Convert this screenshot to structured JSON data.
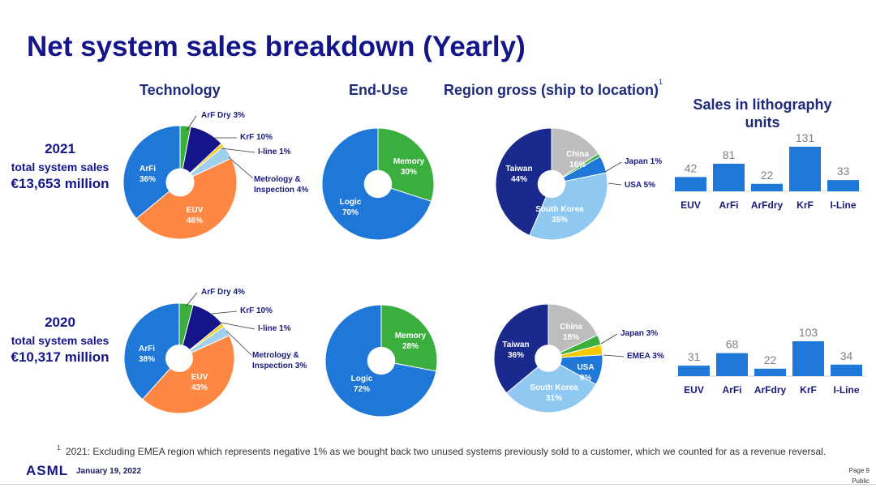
{
  "title": "Net system sales breakdown (Yearly)",
  "headings": {
    "technology": "Technology",
    "end_use": "End-Use",
    "region": "Region gross (ship to location)",
    "region_sup": "1",
    "litho_line1": "Sales in lithography",
    "litho_line2": "units"
  },
  "years": [
    {
      "year": "2021",
      "subtitle": "total system sales",
      "amount": "€13,653 million"
    },
    {
      "year": "2020",
      "subtitle": "total system sales",
      "amount": "€10,317 million"
    }
  ],
  "footnote": {
    "marker": "1",
    "text": "2021: Excluding EMEA region which represents negative 1% as we bought back two unused systems previously sold to a customer, which we counted for as a revenue reversal."
  },
  "footer": {
    "logo": "ASML",
    "date": "January 19, 2022",
    "page": "Page 9",
    "classification": "Public"
  },
  "colors": {
    "navy": "#15158a",
    "blue": "#1f78d8",
    "green": "#3aaf3e",
    "orange": "#ff8744",
    "lightblue": "#9fd0ee",
    "yellow": "#f5c800",
    "gray": "#bdbdbd",
    "darknavy": "#1a2a8c",
    "skyblue": "#8fc9f2"
  },
  "chart_data": [
    {
      "type": "pie",
      "chart": "technology",
      "year": "2021",
      "slices": [
        {
          "label": "ArF Dry",
          "value": 3,
          "pct": "3%",
          "color": "#3aaf3e"
        },
        {
          "label": "KrF",
          "value": 10,
          "pct": "10%",
          "color": "#15158a"
        },
        {
          "label": "I-line",
          "value": 1,
          "pct": "1%",
          "color": "#f5c800"
        },
        {
          "label": "Metrology & Inspection",
          "value": 4,
          "pct": "4%",
          "color": "#9fd0ee"
        },
        {
          "label": "EUV",
          "value": 46,
          "pct": "46%",
          "color": "#ff8744"
        },
        {
          "label": "ArFi",
          "value": 36,
          "pct": "36%",
          "color": "#1f78d8"
        }
      ]
    },
    {
      "type": "pie",
      "chart": "end-use",
      "year": "2021",
      "slices": [
        {
          "label": "Memory",
          "value": 30,
          "pct": "30%",
          "color": "#3aaf3e"
        },
        {
          "label": "Logic",
          "value": 70,
          "pct": "70%",
          "color": "#1f78d8"
        }
      ]
    },
    {
      "type": "pie",
      "chart": "region",
      "year": "2021",
      "slices": [
        {
          "label": "China",
          "value": 16,
          "pct": "16%",
          "color": "#bdbdbd"
        },
        {
          "label": "Japan",
          "value": 1,
          "pct": "1%",
          "color": "#3aaf3e"
        },
        {
          "label": "USA",
          "value": 5,
          "pct": "5%",
          "color": "#1f78d8"
        },
        {
          "label": "South Korea",
          "value": 35,
          "pct": "35%",
          "color": "#8fc9f2"
        },
        {
          "label": "Taiwan",
          "value": 44,
          "pct": "44%",
          "color": "#1a2a8c"
        }
      ]
    },
    {
      "type": "bar",
      "chart": "lithography-units",
      "year": "2021",
      "categories": [
        "EUV",
        "ArFi",
        "ArFdry",
        "KrF",
        "I-Line"
      ],
      "values": [
        42,
        81,
        22,
        131,
        33
      ]
    },
    {
      "type": "pie",
      "chart": "technology",
      "year": "2020",
      "slices": [
        {
          "label": "ArF Dry",
          "value": 4,
          "pct": "4%",
          "color": "#3aaf3e"
        },
        {
          "label": "KrF",
          "value": 10,
          "pct": "10%",
          "color": "#15158a"
        },
        {
          "label": "I-line",
          "value": 1,
          "pct": "1%",
          "color": "#f5c800"
        },
        {
          "label": "Metrology & Inspection",
          "value": 3,
          "pct": "3%",
          "color": "#9fd0ee"
        },
        {
          "label": "EUV",
          "value": 43,
          "pct": "43%",
          "color": "#ff8744"
        },
        {
          "label": "ArFi",
          "value": 38,
          "pct": "38%",
          "color": "#1f78d8"
        }
      ]
    },
    {
      "type": "pie",
      "chart": "end-use",
      "year": "2020",
      "slices": [
        {
          "label": "Memory",
          "value": 28,
          "pct": "28%",
          "color": "#3aaf3e"
        },
        {
          "label": "Logic",
          "value": 72,
          "pct": "72%",
          "color": "#1f78d8"
        }
      ]
    },
    {
      "type": "pie",
      "chart": "region",
      "year": "2020",
      "slices": [
        {
          "label": "China",
          "value": 18,
          "pct": "18%",
          "color": "#bdbdbd"
        },
        {
          "label": "Japan",
          "value": 3,
          "pct": "3%",
          "color": "#3aaf3e"
        },
        {
          "label": "EMEA",
          "value": 3,
          "pct": "3%",
          "color": "#f5c800"
        },
        {
          "label": "USA",
          "value": 9,
          "pct": "9%",
          "color": "#1f78d8"
        },
        {
          "label": "South Korea",
          "value": 31,
          "pct": "31%",
          "color": "#8fc9f2"
        },
        {
          "label": "Taiwan",
          "value": 36,
          "pct": "36%",
          "color": "#1a2a8c"
        }
      ]
    },
    {
      "type": "bar",
      "chart": "lithography-units",
      "year": "2020",
      "categories": [
        "EUV",
        "ArFi",
        "ArFdry",
        "KrF",
        "I-Line"
      ],
      "values": [
        31,
        68,
        22,
        103,
        34
      ]
    }
  ]
}
